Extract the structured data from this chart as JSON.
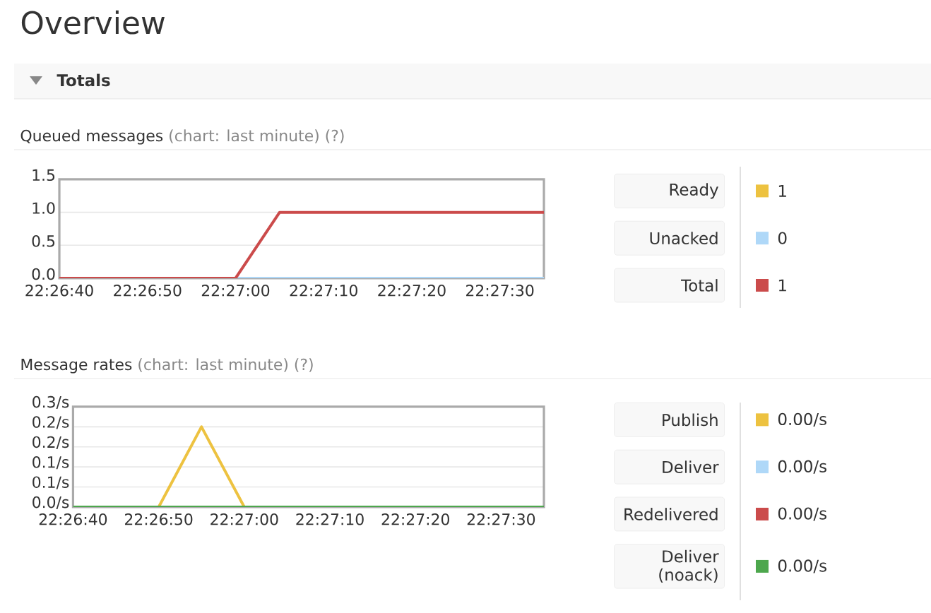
{
  "chart_data": [
    {
      "type": "line",
      "title": "Queued messages",
      "subtitle": "(chart: last minute) (?)",
      "annotations": [
        "Overview",
        "Totals",
        "1",
        "0",
        "1"
      ],
      "legend": "right",
      "grid": "y",
      "x": [
        22.444444,
        22.45,
        22.451389,
        22.459722
      ],
      "xlim": [
        22.444444,
        22.459722
      ],
      "xticks": [
        {
          "value": 22.444444,
          "label": "22:26:40"
        },
        {
          "value": 22.447222,
          "label": "22:26:50"
        },
        {
          "value": 22.45,
          "label": "22:27:00"
        },
        {
          "value": 22.452778,
          "label": "22:27:10"
        },
        {
          "value": 22.455556,
          "label": "22:27:20"
        },
        {
          "value": 22.458333,
          "label": "22:27:30"
        }
      ],
      "ylim": [
        0,
        1.5
      ],
      "yticks": [
        {
          "value": 0,
          "label": "0.0"
        },
        {
          "value": 0.5,
          "label": "0.5"
        },
        {
          "value": 1,
          "label": "1.0"
        },
        {
          "value": 1.5,
          "label": "1.5"
        }
      ],
      "series": [
        {
          "name": "Ready",
          "color": "#edc240",
          "values": [
            null,
            null,
            null,
            null
          ]
        },
        {
          "name": "Unacked",
          "color": "#afd8f8",
          "values": [
            null,
            0,
            0,
            0
          ]
        },
        {
          "name": "Total",
          "color": "#cb4b4b",
          "values": [
            0,
            0,
            1,
            1
          ]
        }
      ]
    },
    {
      "type": "line",
      "title": "Message rates",
      "subtitle": "(chart: last minute) (?)",
      "annotations": [
        "0.00/s",
        "0.00/s",
        "0.00/s",
        "0.00/s"
      ],
      "legend": "right",
      "grid": "y",
      "x": [
        22.444444,
        22.447222,
        22.448611,
        22.45,
        22.459722
      ],
      "xlim": [
        22.444444,
        22.459722
      ],
      "xticks": [
        {
          "value": 22.444444,
          "label": "22:26:40"
        },
        {
          "value": 22.447222,
          "label": "22:26:50"
        },
        {
          "value": 22.45,
          "label": "22:27:00"
        },
        {
          "value": 22.452778,
          "label": "22:27:10"
        },
        {
          "value": 22.455556,
          "label": "22:27:20"
        },
        {
          "value": 22.458333,
          "label": "22:27:30"
        }
      ],
      "ylim": [
        0,
        0.3
      ],
      "yticks": [
        {
          "value": 0,
          "label": "0.0/s"
        },
        {
          "value": 0.06,
          "label": "0.1/s"
        },
        {
          "value": 0.12,
          "label": "0.1/s"
        },
        {
          "value": 0.18,
          "label": "0.2/s"
        },
        {
          "value": 0.24,
          "label": "0.2/s"
        },
        {
          "value": 0.3,
          "label": "0.3/s"
        }
      ],
      "series": [
        {
          "name": "Publish",
          "color": "#edc240",
          "values": [
            null,
            0,
            0.24,
            0,
            null
          ]
        },
        {
          "name": "Deliver",
          "color": "#afd8f8",
          "values": [
            null,
            null,
            null,
            null,
            null
          ]
        },
        {
          "name": "Redelivered",
          "color": "#cb4b4b",
          "values": [
            null,
            null,
            null,
            null,
            null
          ]
        },
        {
          "name": "Deliver (noack)",
          "color": "#4da74d",
          "values": [
            0,
            0,
            0,
            0,
            0
          ]
        }
      ]
    }
  ]
}
